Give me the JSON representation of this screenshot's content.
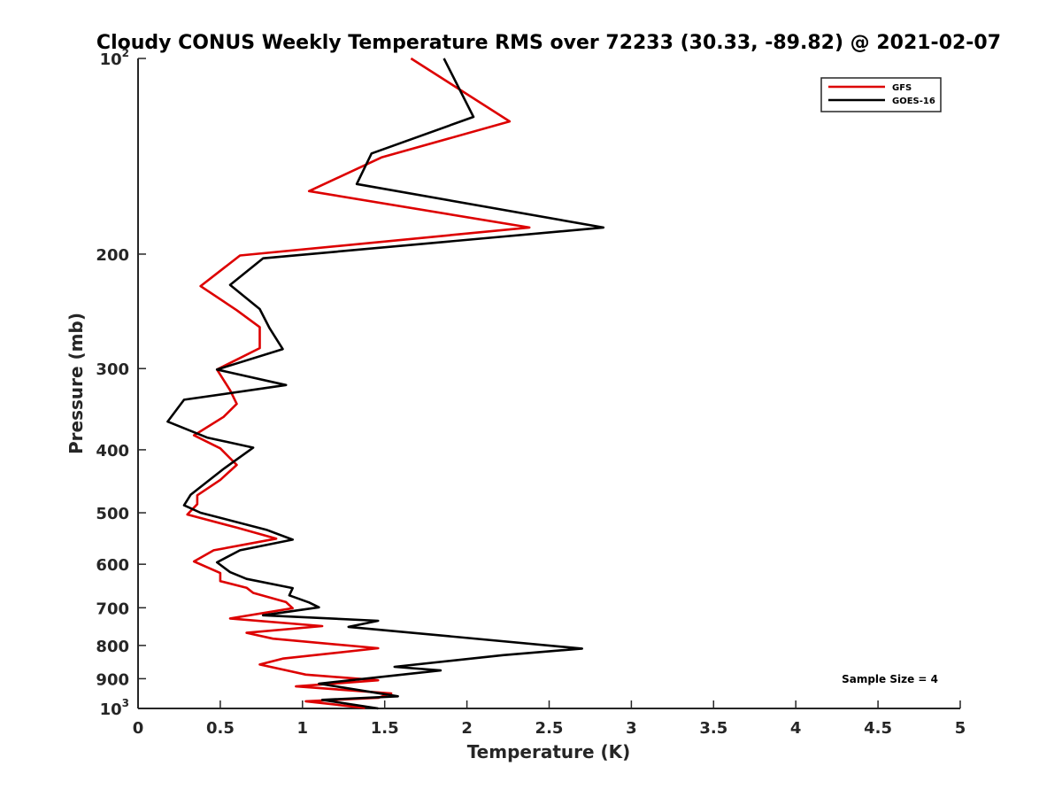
{
  "chart_data": {
    "type": "line",
    "title": "Cloudy CONUS Weekly Temperature RMS over 72233 (30.33, -89.82) @ 2021-02-07",
    "xlabel": "Temperature (K)",
    "ylabel": "Pressure (mb)",
    "xlim": [
      0,
      5
    ],
    "ylim": [
      100,
      1000
    ],
    "y_scale": "log",
    "y_reversed": true,
    "grid": false,
    "legend_position": "top-right",
    "x_ticks": [
      "0",
      "0.5",
      "1",
      "1.5",
      "2",
      "2.5",
      "3",
      "3.5",
      "4",
      "4.5",
      "5"
    ],
    "y_ticks": [
      {
        "value": 100,
        "base": "10",
        "exp": "2"
      },
      {
        "value": 200,
        "label": "200"
      },
      {
        "value": 300,
        "label": "300"
      },
      {
        "value": 400,
        "label": "400"
      },
      {
        "value": 500,
        "label": "500"
      },
      {
        "value": 600,
        "label": "600"
      },
      {
        "value": 700,
        "label": "700"
      },
      {
        "value": 800,
        "label": "800"
      },
      {
        "value": 900,
        "label": "900"
      },
      {
        "value": 1000,
        "base": "10",
        "exp": "3"
      }
    ],
    "annotation": "Sample Size = 4",
    "series": [
      {
        "name": "GFS",
        "color": "#dd0000",
        "points": [
          [
            1.66,
            100
          ],
          [
            2.26,
            125
          ],
          [
            1.48,
            142
          ],
          [
            1.04,
            160
          ],
          [
            2.38,
            182
          ],
          [
            0.62,
            201
          ],
          [
            0.38,
            224
          ],
          [
            0.6,
            244
          ],
          [
            0.74,
            259
          ],
          [
            0.74,
            279
          ],
          [
            0.48,
            301
          ],
          [
            0.56,
            324
          ],
          [
            0.6,
            340
          ],
          [
            0.52,
            356
          ],
          [
            0.34,
            380
          ],
          [
            0.5,
            398
          ],
          [
            0.6,
            422
          ],
          [
            0.5,
            445
          ],
          [
            0.36,
            470
          ],
          [
            0.36,
            485
          ],
          [
            0.3,
            503
          ],
          [
            0.6,
            527
          ],
          [
            0.84,
            548
          ],
          [
            0.46,
            571
          ],
          [
            0.34,
            594
          ],
          [
            0.5,
            619
          ],
          [
            0.5,
            637
          ],
          [
            0.66,
            652
          ],
          [
            0.7,
            664
          ],
          [
            0.9,
            686
          ],
          [
            0.94,
            701
          ],
          [
            0.56,
            727
          ],
          [
            1.12,
            747
          ],
          [
            0.66,
            765
          ],
          [
            0.82,
            781
          ],
          [
            1.46,
            808
          ],
          [
            0.88,
            838
          ],
          [
            0.74,
            856
          ],
          [
            1.02,
            887
          ],
          [
            1.46,
            905
          ],
          [
            0.96,
            925
          ],
          [
            1.54,
            948
          ],
          [
            1.46,
            963
          ],
          [
            1.02,
            975
          ],
          [
            1.38,
            998
          ]
        ]
      },
      {
        "name": "GOES-16",
        "color": "#000000",
        "points": [
          [
            1.86,
            100
          ],
          [
            2.04,
            123
          ],
          [
            1.42,
            140
          ],
          [
            1.33,
            156
          ],
          [
            2.83,
            182
          ],
          [
            0.76,
            203
          ],
          [
            0.56,
            223
          ],
          [
            0.74,
            243
          ],
          [
            0.8,
            260
          ],
          [
            0.88,
            280
          ],
          [
            0.48,
            301
          ],
          [
            0.9,
            318
          ],
          [
            0.28,
            335
          ],
          [
            0.18,
            362
          ],
          [
            0.42,
            383
          ],
          [
            0.7,
            397
          ],
          [
            0.52,
            428
          ],
          [
            0.32,
            469
          ],
          [
            0.28,
            487
          ],
          [
            0.38,
            500
          ],
          [
            0.78,
            531
          ],
          [
            0.94,
            550
          ],
          [
            0.62,
            571
          ],
          [
            0.48,
            596
          ],
          [
            0.56,
            617
          ],
          [
            0.66,
            632
          ],
          [
            0.94,
            653
          ],
          [
            0.92,
            670
          ],
          [
            1.04,
            687
          ],
          [
            1.1,
            699
          ],
          [
            0.76,
            719
          ],
          [
            1.46,
            733
          ],
          [
            1.28,
            749
          ],
          [
            2.7,
            809
          ],
          [
            2.22,
            828
          ],
          [
            1.56,
            863
          ],
          [
            1.84,
            874
          ],
          [
            1.1,
            916
          ],
          [
            1.58,
            958
          ],
          [
            1.12,
            970
          ],
          [
            1.46,
            1000
          ]
        ]
      }
    ]
  }
}
